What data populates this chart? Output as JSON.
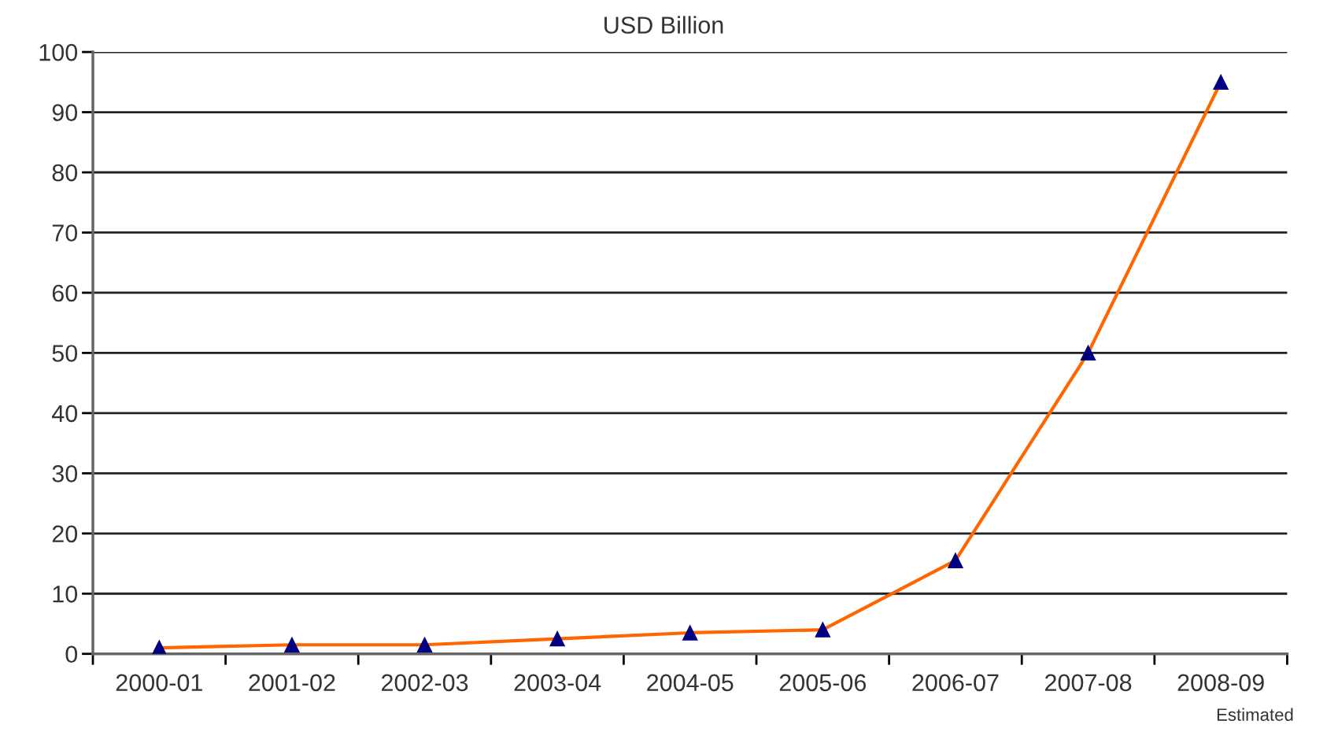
{
  "chart_data": {
    "type": "line",
    "title": "USD Billion",
    "categories": [
      "2000-01",
      "2001-02",
      "2002-03",
      "2003-04",
      "2004-05",
      "2005-06",
      "2006-07",
      "2007-08",
      "2008-09"
    ],
    "series": [
      {
        "color": "#ff6600",
        "values": [
          1,
          1.5,
          1.5,
          2.5,
          3.5,
          4,
          15.5,
          50,
          95
        ]
      }
    ],
    "ylim": [
      0,
      100
    ],
    "yticks": [
      0,
      10,
      20,
      30,
      40,
      50,
      60,
      70,
      80,
      90,
      100
    ],
    "grid": "y",
    "marker": "triangle",
    "legend": false,
    "annotations": [
      "Estimated"
    ]
  }
}
